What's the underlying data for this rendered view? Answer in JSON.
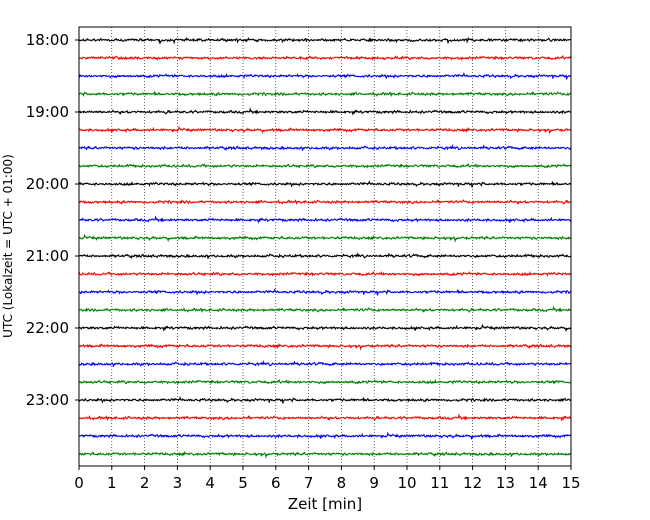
{
  "chart_data": {
    "type": "line",
    "title": "",
    "xlabel": "Zeit  [min]",
    "ylabel": "UTC (Lokalzeit = UTC + 01:00)",
    "xlim": [
      0,
      15
    ],
    "x_ticks": [
      "0",
      "1",
      "2",
      "3",
      "4",
      "5",
      "6",
      "7",
      "8",
      "9",
      "10",
      "11",
      "12",
      "13",
      "14",
      "15"
    ],
    "y_tick_labels": [
      "18:00",
      "19:00",
      "20:00",
      "21:00",
      "22:00",
      "23:00"
    ],
    "trace_interval_minutes": 15,
    "trace_start": "18:00",
    "trace_end": "23:45",
    "trace_count": 24,
    "trace_colors": [
      "#000000",
      "#ff0000",
      "#0000ff",
      "#008000"
    ],
    "grid": "vertical dotted lines at each minute",
    "legend": "none"
  }
}
